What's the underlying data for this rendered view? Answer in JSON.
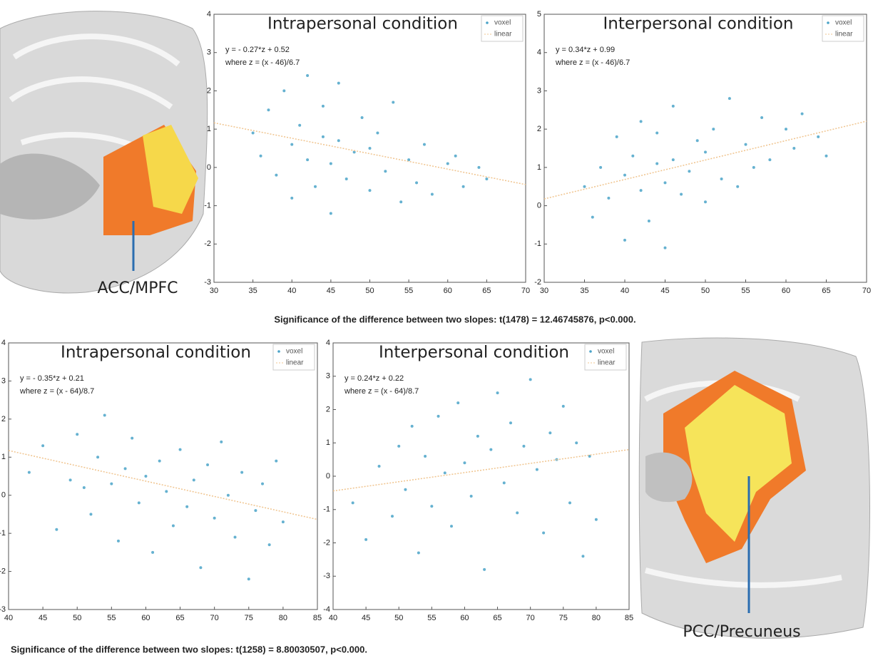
{
  "chart_data": [
    {
      "type": "scatter",
      "title": "Intrapersonal condition",
      "annotations": [
        "y = - 0.27*z + 0.52",
        "where z = (x - 46)/6.7"
      ],
      "xlim": [
        30,
        70
      ],
      "xticks": [
        30,
        35,
        40,
        45,
        50,
        55,
        60,
        65,
        70
      ],
      "ylim": [
        -3,
        4
      ],
      "yticks": [
        -3,
        -2,
        -1,
        0,
        1,
        2,
        3,
        4
      ],
      "series": [
        {
          "name": "voxel",
          "color": "#4aa3c8",
          "x": [
            35,
            36,
            37,
            38,
            39,
            40,
            40,
            41,
            42,
            42,
            43,
            44,
            44,
            45,
            45,
            46,
            46,
            47,
            48,
            49,
            50,
            50,
            51,
            52,
            53,
            54,
            55,
            56,
            57,
            58,
            60,
            61,
            62,
            64,
            65
          ],
          "values": [
            0.9,
            0.3,
            1.5,
            -0.2,
            2.0,
            0.6,
            -0.8,
            1.1,
            0.2,
            2.4,
            -0.5,
            0.8,
            1.6,
            0.1,
            -1.2,
            0.7,
            2.2,
            -0.3,
            0.4,
            1.3,
            -0.6,
            0.5,
            0.9,
            -0.1,
            1.7,
            -0.9,
            0.2,
            -0.4,
            0.6,
            -0.7,
            0.1,
            0.3,
            -0.5,
            0.0,
            -0.3
          ]
        },
        {
          "name": "linear",
          "color": "#f0c48e",
          "x": [
            30,
            70
          ],
          "values": [
            1.165,
            -0.447
          ]
        }
      ]
    },
    {
      "type": "scatter",
      "title": "Interpersonal condition",
      "annotations": [
        "y = 0.34*z + 0.99",
        "where z = (x - 46)/6.7"
      ],
      "xlim": [
        30,
        70
      ],
      "xticks": [
        30,
        35,
        40,
        45,
        50,
        55,
        60,
        65,
        70
      ],
      "ylim": [
        -2,
        5
      ],
      "yticks": [
        -2,
        -1,
        0,
        1,
        2,
        3,
        4,
        5
      ],
      "series": [
        {
          "name": "voxel",
          "color": "#4aa3c8",
          "x": [
            35,
            36,
            37,
            38,
            39,
            40,
            40,
            41,
            42,
            42,
            43,
            44,
            44,
            45,
            45,
            46,
            46,
            47,
            48,
            49,
            50,
            50,
            51,
            52,
            53,
            54,
            55,
            56,
            57,
            58,
            60,
            61,
            62,
            64,
            65
          ],
          "values": [
            0.5,
            -0.3,
            1.0,
            0.2,
            1.8,
            0.8,
            -0.9,
            1.3,
            0.4,
            2.2,
            -0.4,
            1.1,
            1.9,
            0.6,
            -1.1,
            1.2,
            2.6,
            0.3,
            0.9,
            1.7,
            0.1,
            1.4,
            2.0,
            0.7,
            2.8,
            0.5,
            1.6,
            1.0,
            2.3,
            1.2,
            2.0,
            1.5,
            2.4,
            1.8,
            1.3
          ]
        },
        {
          "name": "linear",
          "color": "#f0c48e",
          "x": [
            30,
            70
          ],
          "values": [
            0.178,
            2.208
          ]
        }
      ]
    },
    {
      "type": "scatter",
      "title": "Intrapersonal condition",
      "annotations": [
        "y = - 0.35*z + 0.21",
        "where z = (x - 64)/8.7"
      ],
      "xlim": [
        40,
        85
      ],
      "xticks": [
        40,
        45,
        50,
        55,
        60,
        65,
        70,
        75,
        80,
        85
      ],
      "ylim": [
        -3,
        4
      ],
      "yticks": [
        -3,
        -2,
        -1,
        0,
        1,
        2,
        3,
        4
      ],
      "series": [
        {
          "name": "voxel",
          "color": "#4aa3c8",
          "x": [
            43,
            45,
            47,
            49,
            50,
            51,
            52,
            53,
            54,
            55,
            56,
            57,
            58,
            59,
            60,
            61,
            62,
            63,
            64,
            65,
            66,
            67,
            68,
            69,
            70,
            71,
            72,
            73,
            74,
            75,
            76,
            77,
            78,
            79,
            80
          ],
          "values": [
            0.6,
            1.3,
            -0.9,
            0.4,
            1.6,
            0.2,
            -0.5,
            1.0,
            2.1,
            0.3,
            -1.2,
            0.7,
            1.5,
            -0.2,
            0.5,
            -1.5,
            0.9,
            0.1,
            -0.8,
            1.2,
            -0.3,
            0.4,
            -1.9,
            0.8,
            -0.6,
            1.4,
            0.0,
            -1.1,
            0.6,
            -2.2,
            -0.4,
            0.3,
            -1.3,
            0.9,
            -0.7
          ]
        },
        {
          "name": "linear",
          "color": "#f0c48e",
          "x": [
            40,
            85
          ],
          "values": [
            1.175,
            -0.635
          ]
        }
      ]
    },
    {
      "type": "scatter",
      "title": "Interpersonal condition",
      "annotations": [
        "y = 0.24*z + 0.22",
        "where z = (x - 64)/8.7"
      ],
      "xlim": [
        40,
        85
      ],
      "xticks": [
        40,
        45,
        50,
        55,
        60,
        65,
        70,
        75,
        80,
        85
      ],
      "ylim": [
        -4,
        4
      ],
      "yticks": [
        -4,
        -3,
        -2,
        -1,
        0,
        1,
        2,
        3,
        4
      ],
      "series": [
        {
          "name": "voxel",
          "color": "#4aa3c8",
          "x": [
            43,
            45,
            47,
            49,
            50,
            51,
            52,
            53,
            54,
            55,
            56,
            57,
            58,
            59,
            60,
            61,
            62,
            63,
            64,
            65,
            66,
            67,
            68,
            69,
            70,
            71,
            72,
            73,
            74,
            75,
            76,
            77,
            78,
            79,
            80
          ],
          "values": [
            -0.8,
            -1.9,
            0.3,
            -1.2,
            0.9,
            -0.4,
            1.5,
            -2.3,
            0.6,
            -0.9,
            1.8,
            0.1,
            -1.5,
            2.2,
            0.4,
            -0.6,
            1.2,
            -2.8,
            0.8,
            2.5,
            -0.2,
            1.6,
            -1.1,
            0.9,
            2.9,
            0.2,
            -1.7,
            1.3,
            0.5,
            2.1,
            -0.8,
            1.0,
            -2.4,
            0.6,
            -1.3
          ]
        },
        {
          "name": "linear",
          "color": "#f0c48e",
          "x": [
            40,
            85
          ],
          "values": [
            -0.442,
            0.799
          ]
        }
      ]
    }
  ],
  "figure": {
    "region_labels": [
      "ACC/MPFC",
      "PCC/Precuneus"
    ],
    "captions": [
      "Significance of the difference between two slopes: t(1478) = 12.46745876, p<0.000.",
      "Significance of the difference between two slopes: t(1258) = 8.80030507, p<0.000."
    ]
  }
}
